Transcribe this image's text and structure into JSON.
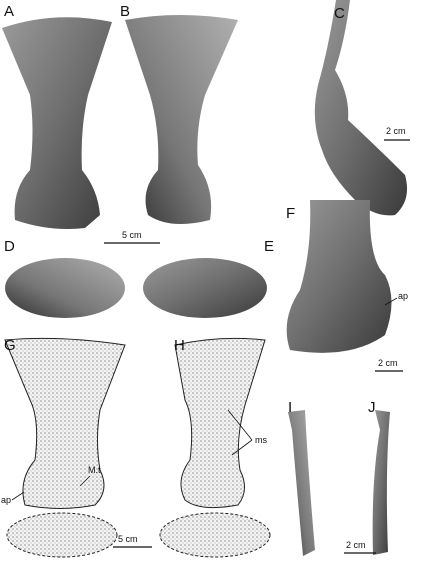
{
  "panels": [
    {
      "label": "A"
    },
    {
      "label": "B"
    },
    {
      "label": "C"
    },
    {
      "label": "D"
    },
    {
      "label": "E"
    },
    {
      "label": "F"
    },
    {
      "label": "G"
    },
    {
      "label": "H"
    },
    {
      "label": "I"
    },
    {
      "label": "J"
    }
  ],
  "scale_bars": [
    {
      "label": "2 cm"
    },
    {
      "label": "5 cm"
    },
    {
      "label": "2 cm"
    },
    {
      "label": "5 cm"
    },
    {
      "label": "2 cm"
    }
  ],
  "annotations": [
    {
      "text": "ap"
    },
    {
      "text": "M.t"
    },
    {
      "text": "ap"
    },
    {
      "text": "ms"
    }
  ]
}
